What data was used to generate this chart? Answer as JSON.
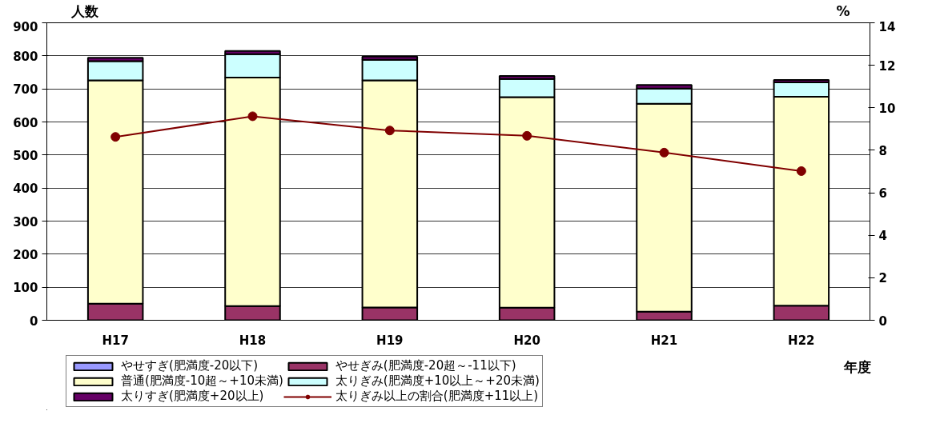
{
  "chart_data": {
    "type": "bar",
    "stacked": true,
    "ylabel": "人数",
    "y2label": "%",
    "xlabel": "年度",
    "categories": [
      "H17",
      "H18",
      "H19",
      "H20",
      "H21",
      "H22"
    ],
    "ylim": [
      0,
      900
    ],
    "yticks": [
      0,
      100,
      200,
      300,
      400,
      500,
      600,
      700,
      800,
      900
    ],
    "y2lim": [
      0,
      14
    ],
    "y2ticks": [
      0,
      2,
      4,
      6,
      8,
      10,
      12,
      14
    ],
    "grid": "y",
    "legend": "bottom",
    "series": [
      {
        "name": "やせすぎ(肥満度-20以下)",
        "color": "#9999ff",
        "values": [
          null,
          null,
          null,
          null,
          null,
          null
        ]
      },
      {
        "name": "やせぎみ(肥満度-20超～-11以下)",
        "color": "#993366",
        "values": [
          50,
          43,
          39,
          38,
          26,
          44
        ]
      },
      {
        "name": "普通(肥満度-10超～+10未満)",
        "color": "#ffffcc",
        "values": [
          676,
          691,
          687,
          637,
          629,
          632
        ]
      },
      {
        "name": "太りぎみ(肥満度+10以上～+20未満)",
        "color": "#ccffff",
        "values": [
          58,
          71,
          62,
          55,
          46,
          44
        ]
      },
      {
        "name": "太りすぎ(肥満度+20以上)",
        "color": "#660066",
        "values": [
          10,
          10,
          10,
          9,
          11,
          7
        ]
      },
      {
        "name": "太りぎみ以上の割合(肥満度+11以上)",
        "type": "line",
        "axis": "y2",
        "color": "#800000",
        "marker": "circle",
        "values": [
          8.63,
          9.6,
          8.93,
          8.68,
          7.89,
          7.02
        ]
      }
    ]
  }
}
